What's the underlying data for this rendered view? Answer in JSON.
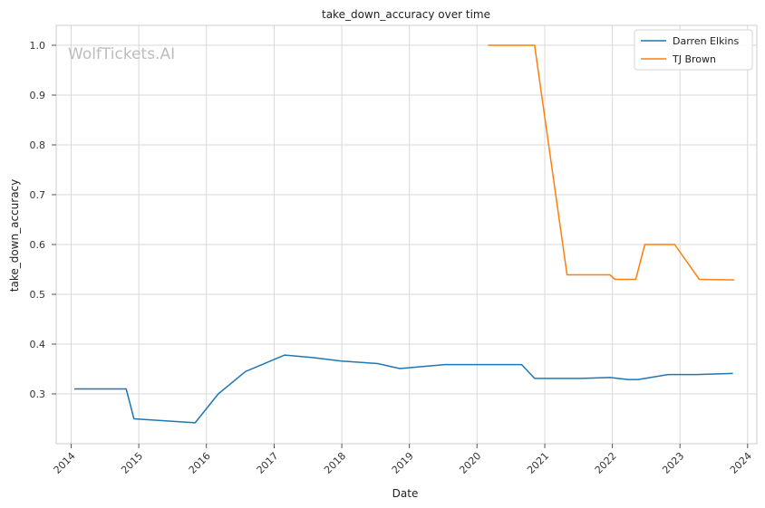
{
  "watermark": "WolfTickets.AI",
  "chart_data": {
    "type": "line",
    "title": "take_down_accuracy over time",
    "xlabel": "Date",
    "ylabel": "take_down_accuracy",
    "xlim": [
      "2013-10-12",
      "2024-02-20"
    ],
    "ylim": [
      0.2,
      1.04
    ],
    "x_ticks": [
      "2014",
      "2015",
      "2016",
      "2017",
      "2018",
      "2019",
      "2020",
      "2021",
      "2022",
      "2023",
      "2024"
    ],
    "y_ticks": [
      "0.3",
      "0.4",
      "0.5",
      "0.6",
      "0.7",
      "0.8",
      "0.9",
      "1.0"
    ],
    "grid": true,
    "legend_position": "top-right",
    "series": [
      {
        "name": "Darren Elkins",
        "color": "#1f77b4",
        "points": [
          [
            "2014-01-18",
            0.31
          ],
          [
            "2014-10-25",
            0.31
          ],
          [
            "2014-12-06",
            0.25
          ],
          [
            "2015-11-01",
            0.242
          ],
          [
            "2016-03-05",
            0.3
          ],
          [
            "2016-07-30",
            0.345
          ],
          [
            "2017-02-27",
            0.378
          ],
          [
            "2017-07-29",
            0.373
          ],
          [
            "2017-12-30",
            0.366
          ],
          [
            "2018-07-14",
            0.361
          ],
          [
            "2018-11-10",
            0.351
          ],
          [
            "2019-07-13",
            0.359
          ],
          [
            "2019-12-14",
            0.359
          ],
          [
            "2020-08-29",
            0.359
          ],
          [
            "2020-11-07",
            0.331
          ],
          [
            "2021-07-17",
            0.331
          ],
          [
            "2021-12-18",
            0.333
          ],
          [
            "2022-03-26",
            0.329
          ],
          [
            "2022-05-21",
            0.329
          ],
          [
            "2022-10-29",
            0.339
          ],
          [
            "2023-04-01",
            0.339
          ],
          [
            "2023-10-14",
            0.341
          ]
        ]
      },
      {
        "name": "TJ Brown",
        "color": "#ff7f0e",
        "points": [
          [
            "2020-02-29",
            1.0
          ],
          [
            "2020-11-07",
            1.0
          ],
          [
            "2021-05-01",
            0.539
          ],
          [
            "2021-12-18",
            0.539
          ],
          [
            "2022-01-15",
            0.53
          ],
          [
            "2022-05-07",
            0.53
          ],
          [
            "2022-06-25",
            0.6
          ],
          [
            "2022-12-03",
            0.6
          ],
          [
            "2023-04-15",
            0.53
          ],
          [
            "2023-10-21",
            0.529
          ]
        ]
      }
    ]
  }
}
